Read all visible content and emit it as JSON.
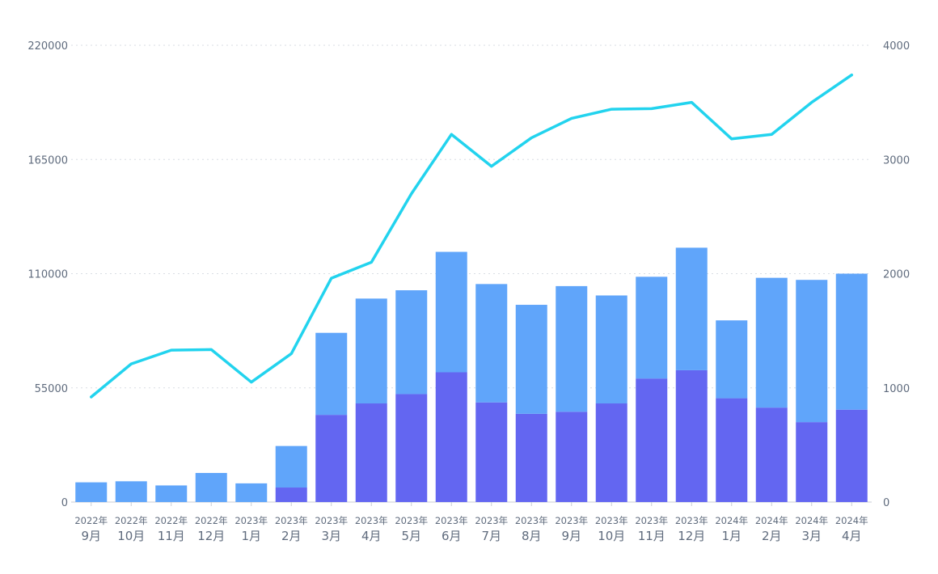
{
  "chart_data": {
    "type": "bar+line",
    "title": "",
    "categories": [
      {
        "year": "2022年",
        "month": "9月"
      },
      {
        "year": "2022年",
        "month": "10月"
      },
      {
        "year": "2022年",
        "month": "11月"
      },
      {
        "year": "2022年",
        "month": "12月"
      },
      {
        "year": "2023年",
        "month": "1月"
      },
      {
        "year": "2023年",
        "month": "2月"
      },
      {
        "year": "2023年",
        "month": "3月"
      },
      {
        "year": "2023年",
        "month": "4月"
      },
      {
        "year": "2023年",
        "month": "5月"
      },
      {
        "year": "2023年",
        "month": "6月"
      },
      {
        "year": "2023年",
        "month": "7月"
      },
      {
        "year": "2023年",
        "month": "8月"
      },
      {
        "year": "2023年",
        "month": "9月"
      },
      {
        "year": "2023年",
        "month": "10月"
      },
      {
        "year": "2023年",
        "month": "11月"
      },
      {
        "year": "2023年",
        "month": "12月"
      },
      {
        "year": "2024年",
        "month": "1月"
      },
      {
        "year": "2024年",
        "month": "2月"
      },
      {
        "year": "2024年",
        "month": "3月"
      },
      {
        "year": "2024年",
        "month": "4月"
      }
    ],
    "left_axis": {
      "min": 0,
      "max": 220000,
      "ticks": [
        0,
        55000,
        110000,
        165000,
        220000
      ]
    },
    "right_axis": {
      "min": 0,
      "max": 4000,
      "ticks": [
        0,
        1000,
        2000,
        3000,
        4000
      ]
    },
    "series": [
      {
        "name": "bar-lower",
        "type": "bar-stacked",
        "axis": "left",
        "color": "#6366f1",
        "values": [
          0,
          0,
          0,
          0,
          0,
          7000,
          42000,
          47500,
          52000,
          62500,
          48000,
          42500,
          43500,
          47500,
          59500,
          63500,
          50000,
          45500,
          38500,
          44500
        ]
      },
      {
        "name": "bar-upper",
        "type": "bar-stacked",
        "axis": "left",
        "color": "#60a5fa",
        "values": [
          9500,
          10000,
          8000,
          14000,
          9000,
          20000,
          39500,
          50500,
          50000,
          58000,
          57000,
          52500,
          60500,
          52000,
          49000,
          59000,
          37500,
          62500,
          68500,
          65500
        ]
      },
      {
        "name": "line",
        "type": "line",
        "axis": "right",
        "color": "#22d3ee",
        "values": [
          920,
          1210,
          1330,
          1335,
          1050,
          1300,
          1960,
          2100,
          2700,
          3220,
          2940,
          3190,
          3360,
          3440,
          3445,
          3500,
          3180,
          3220,
          3500,
          3740
        ]
      }
    ],
    "grid": true,
    "legend": "none"
  }
}
